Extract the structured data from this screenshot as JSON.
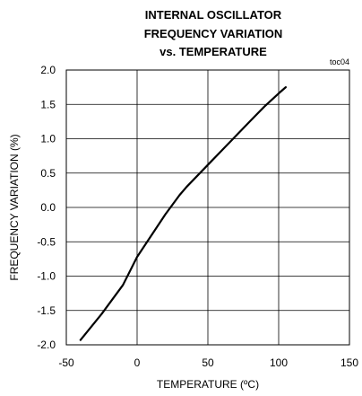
{
  "chart_data": {
    "type": "line",
    "title_lines": [
      "INTERNAL OSCILLATOR",
      "FREQUENCY VARIATION",
      "vs. TEMPERATURE"
    ],
    "tag": "toc04",
    "xlabel": "TEMPERATURE (ºC)",
    "ylabel": "FREQUENCY VARIATION (%)",
    "xlim": [
      -50,
      150
    ],
    "ylim": [
      -2.0,
      2.0
    ],
    "x_ticks": [
      -50,
      0,
      50,
      100,
      150
    ],
    "x_tick_labels": [
      "-50",
      "0",
      "50",
      "100",
      "150"
    ],
    "y_ticks": [
      2.0,
      1.5,
      1.0,
      0.5,
      0.0,
      -0.5,
      -1.0,
      -1.5,
      -2.0
    ],
    "y_tick_labels": [
      "2.0",
      "1.5",
      "1.0",
      "0.5",
      "0.0",
      "-0.5",
      "-1.0",
      "-1.5",
      "-2.0"
    ],
    "grid": true,
    "series": [
      {
        "x": [
          -40,
          -25,
          -10,
          0,
          10,
          20,
          30,
          35,
          50,
          65,
          80,
          90,
          100,
          105
        ],
        "y": [
          -1.93,
          -1.55,
          -1.13,
          -0.72,
          -0.41,
          -0.1,
          0.18,
          0.3,
          0.62,
          0.94,
          1.26,
          1.47,
          1.66,
          1.75
        ]
      }
    ],
    "colors": {
      "line": "#000000",
      "grid": "#000000",
      "background": "#ffffff"
    }
  }
}
